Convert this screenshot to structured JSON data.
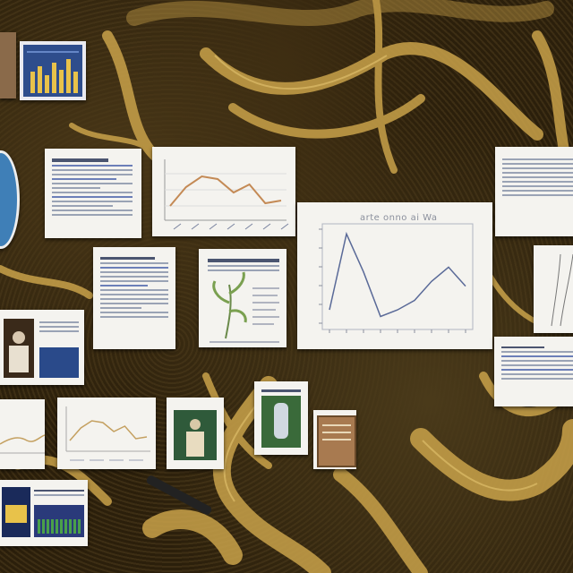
{
  "scene": {
    "description_free": true,
    "palette": {
      "background": "#2a1e0c",
      "organic_gold": "#c9a24a",
      "organic_dark": "#3a2a10",
      "paper": "#f4f3ef",
      "ink_blue": "#4a5a8a",
      "chart_line": "#6a7aa8",
      "chart_line_orange": "#c48a55"
    }
  },
  "main_chart": {
    "title": "arte onno ai Wa"
  },
  "chart_data": [
    {
      "type": "line",
      "title": "",
      "x": [
        0,
        1,
        2,
        3,
        4,
        5,
        6,
        7,
        8
      ],
      "series": [
        {
          "values": [
            0.15,
            0.95,
            0.55,
            0.08,
            0.15,
            0.25,
            0.45,
            0.6,
            0.4
          ]
        }
      ],
      "ylim": [
        0,
        1
      ]
    },
    {
      "type": "line",
      "title": "",
      "x": [
        0,
        1,
        2,
        3,
        4,
        5,
        6,
        7
      ],
      "series": [
        {
          "values": [
            0.2,
            0.55,
            0.75,
            0.7,
            0.45,
            0.6,
            0.25,
            0.3
          ]
        }
      ],
      "ylim": [
        0,
        1
      ]
    }
  ],
  "icons": {
    "organic": "organic-tendril-icon"
  }
}
